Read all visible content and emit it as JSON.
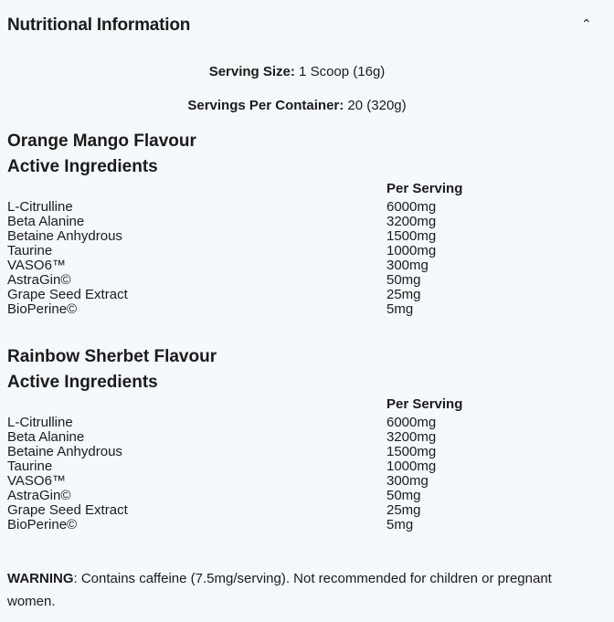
{
  "header": {
    "title": "Nutritional Information",
    "collapse_icon": "chevron-up-icon"
  },
  "serving": {
    "size_label": "Serving Size:",
    "size_value": " 1 Scoop (16g)",
    "per_container_label": "Servings Per Container:",
    "per_container_value": " 20 (320g)"
  },
  "sections": [
    {
      "flavour": "Orange Mango Flavour",
      "subtitle": "Active Ingredients",
      "column_header": "Per Serving",
      "rows": [
        [
          "L-Citrulline",
          "6000mg"
        ],
        [
          "Beta Alanine",
          "3200mg"
        ],
        [
          "Betaine Anhydrous",
          "1500mg"
        ],
        [
          "Taurine",
          "1000mg"
        ],
        [
          "VASO6™",
          "300mg"
        ],
        [
          "AstraGin©",
          "50mg"
        ],
        [
          "Grape Seed Extract",
          "25mg"
        ],
        [
          "BioPerine©",
          "5mg"
        ]
      ]
    },
    {
      "flavour": "Rainbow Sherbet Flavour",
      "subtitle": "Active Ingredients",
      "column_header": "Per Serving",
      "rows": [
        [
          "L-Citrulline",
          "6000mg"
        ],
        [
          "Beta Alanine",
          "3200mg"
        ],
        [
          "Betaine Anhydrous",
          "1500mg"
        ],
        [
          "Taurine",
          "1000mg"
        ],
        [
          "VASO6™",
          "300mg"
        ],
        [
          "AstraGin©",
          "50mg"
        ],
        [
          "Grape Seed Extract",
          "25mg"
        ],
        [
          "BioPerine©",
          "5mg"
        ]
      ]
    }
  ],
  "warning": {
    "label": "WARNING",
    "text": ": Contains caffeine (7.5mg/serving). Not recommended for children or pregnant women."
  }
}
